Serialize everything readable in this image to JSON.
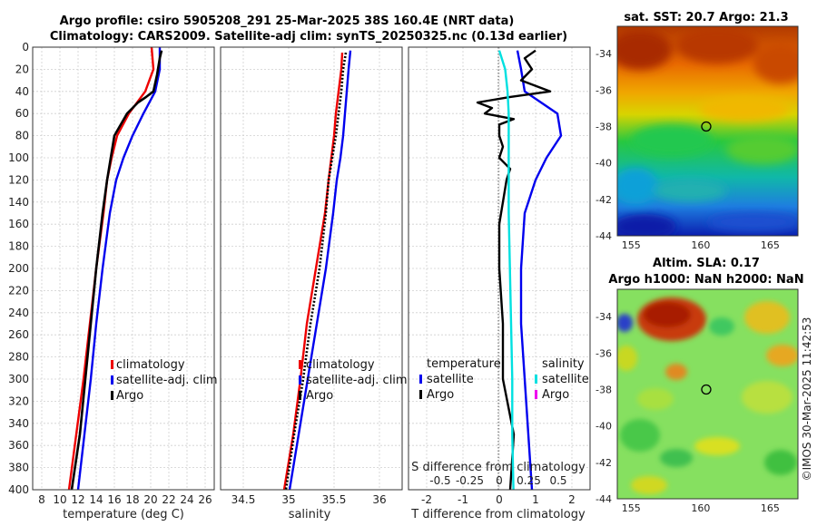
{
  "titles": {
    "line1": "Argo profile: csiro 5905208_291 25-Mar-2025 38S 160.4E (NRT data)",
    "line2": "Climatology: CARS2009. Satellite-adj clim: synTS_20250325.nc (0.13d earlier)"
  },
  "colors": {
    "climatology": "#ee0000",
    "satellite": "#0000ee",
    "argo": "#000000",
    "sat_salinity": "#00e0e0",
    "argo_salinity_diff": "#ee00ee"
  },
  "chart_data": [
    {
      "type": "line",
      "name": "temperature-panel",
      "xlabel": "temperature (deg C)",
      "ylabel": "",
      "xlim": [
        7,
        27
      ],
      "ylim": [
        400,
        0
      ],
      "xticks": [
        8,
        10,
        12,
        14,
        16,
        18,
        20,
        22,
        24,
        26
      ],
      "yticks": [
        0,
        20,
        40,
        60,
        80,
        100,
        120,
        140,
        160,
        180,
        200,
        220,
        240,
        260,
        280,
        300,
        320,
        340,
        360,
        380,
        400
      ],
      "grid": true,
      "legend": {
        "placement": "bottom-right",
        "entries": [
          "climatology",
          "satellite-adj. clim",
          "Argo"
        ]
      },
      "series": [
        {
          "name": "climatology",
          "depth": [
            0,
            20,
            40,
            60,
            80,
            100,
            120,
            150,
            200,
            250,
            300,
            350,
            400
          ],
          "values": [
            20.1,
            20.3,
            19.4,
            17.6,
            16.3,
            15.7,
            15.2,
            14.8,
            14.0,
            13.3,
            12.6,
            11.8,
            11.0
          ]
        },
        {
          "name": "satellite-adj. clim",
          "depth": [
            0,
            20,
            40,
            60,
            80,
            100,
            120,
            150,
            200,
            250,
            300,
            350,
            400
          ],
          "values": [
            21.0,
            21.0,
            20.5,
            19.2,
            18.0,
            17.0,
            16.2,
            15.5,
            14.7,
            14.0,
            13.4,
            12.7,
            12.0
          ]
        },
        {
          "name": "Argo",
          "depth": [
            3,
            10,
            25,
            40,
            45,
            50,
            55,
            60,
            70,
            80,
            100,
            120,
            150,
            200,
            250,
            300,
            350,
            400
          ],
          "values": [
            21.2,
            21.0,
            20.7,
            20.3,
            19.5,
            18.6,
            18.0,
            17.4,
            16.7,
            16.0,
            15.6,
            15.2,
            14.7,
            14.0,
            13.4,
            12.8,
            12.2,
            11.3
          ]
        }
      ]
    },
    {
      "type": "line",
      "name": "salinity-panel",
      "xlabel": "salinity",
      "xlim": [
        34.25,
        36.25
      ],
      "ylim": [
        400,
        0
      ],
      "xticks": [
        34.5,
        35,
        35.5,
        36
      ],
      "xtick_labels": [
        "34.5",
        "35",
        "35.5",
        "36"
      ],
      "grid": true,
      "legend": {
        "placement": "bottom-right",
        "entries": [
          "climatology",
          "satellite-adj. clim",
          "Argo"
        ]
      },
      "series": [
        {
          "name": "climatology",
          "depth": [
            5,
            20,
            40,
            60,
            80,
            100,
            120,
            150,
            200,
            250,
            300,
            350,
            400
          ],
          "values": [
            35.59,
            35.58,
            35.55,
            35.52,
            35.5,
            35.47,
            35.44,
            35.4,
            35.3,
            35.2,
            35.13,
            35.05,
            34.95
          ]
        },
        {
          "name": "satellite-adj. clim",
          "depth": [
            3,
            20,
            40,
            60,
            80,
            100,
            120,
            150,
            200,
            250,
            300,
            350,
            400
          ],
          "values": [
            35.68,
            35.66,
            35.64,
            35.62,
            35.6,
            35.57,
            35.53,
            35.49,
            35.41,
            35.31,
            35.21,
            35.11,
            35.01
          ]
        },
        {
          "name": "Argo",
          "depth": [
            5,
            20,
            40,
            60,
            80,
            100,
            120,
            150,
            200,
            250,
            300,
            350,
            400
          ],
          "values": [
            35.63,
            35.6,
            35.58,
            35.55,
            35.52,
            35.48,
            35.44,
            35.41,
            35.34,
            35.24,
            35.16,
            35.06,
            34.97
          ]
        }
      ]
    },
    {
      "type": "line",
      "name": "difference-panel",
      "xlabel": "T difference from climatology",
      "top_xlabel": "S difference from climatology",
      "xlim": [
        -2.5,
        2.5
      ],
      "ylim": [
        400,
        0
      ],
      "xticks": [
        -2,
        -1,
        0,
        1,
        2
      ],
      "xtick_labels": [
        "-2",
        "-1",
        "0",
        "1",
        "2"
      ],
      "s_ticks": [
        -0.5,
        -0.25,
        0,
        0.25,
        0.5
      ],
      "s_tick_labels": [
        "-0.5",
        "-0.25",
        "0",
        "0.25",
        "0.5"
      ],
      "grid": true,
      "legend": {
        "placement": "bottom",
        "temperature_heading": "temperature",
        "salinity_heading": "salinity",
        "temperature_entries": [
          "satellite",
          "Argo"
        ],
        "salinity_entries": [
          "satellite",
          "Argo"
        ]
      },
      "series": [
        {
          "name": "temperature satellite",
          "depth": [
            3,
            20,
            40,
            60,
            80,
            100,
            120,
            150,
            200,
            250,
            300,
            350,
            400
          ],
          "values": [
            0.5,
            0.6,
            0.7,
            1.6,
            1.7,
            1.3,
            1.0,
            0.7,
            0.6,
            0.6,
            0.7,
            0.8,
            0.9
          ]
        },
        {
          "name": "temperature Argo",
          "depth": [
            3,
            10,
            20,
            30,
            40,
            45,
            50,
            55,
            60,
            65,
            70,
            80,
            90,
            100,
            110,
            120,
            140,
            160,
            200,
            250,
            300,
            350,
            400
          ],
          "values": [
            1.0,
            0.7,
            0.9,
            0.6,
            1.4,
            0.3,
            -0.6,
            -0.2,
            -0.4,
            0.4,
            0.0,
            0.0,
            0.1,
            0.0,
            0.3,
            0.2,
            0.1,
            0.0,
            0.0,
            0.1,
            0.1,
            0.4,
            0.3
          ]
        },
        {
          "name": "salinity satellite",
          "depth": [
            3,
            20,
            40,
            60,
            80,
            100,
            150,
            200,
            250,
            300,
            350,
            400
          ],
          "values": [
            0.0,
            0.05,
            0.07,
            0.08,
            0.08,
            0.08,
            0.08,
            0.09,
            0.1,
            0.11,
            0.11,
            0.12
          ]
        }
      ]
    }
  ],
  "maps": {
    "sst": {
      "title": "sat. SST: 20.7 Argo: 21.3",
      "lat_ticks": [
        "-34",
        "-36",
        "-38",
        "-40",
        "-42",
        "-44"
      ],
      "lon_ticks": [
        "155",
        "160",
        "165"
      ],
      "lon_range": [
        154,
        167
      ],
      "lat_range": [
        -44,
        -32.5
      ],
      "argo_lon": 160.4,
      "argo_lat": -38.0
    },
    "sla": {
      "title1": "Altim. SLA: 0.17",
      "title2": "Argo h1000: NaN h2000: NaN",
      "lat_ticks": [
        "-34",
        "-36",
        "-38",
        "-40",
        "-42",
        "-44"
      ],
      "lon_ticks": [
        "155",
        "160",
        "165"
      ],
      "lon_range": [
        154,
        167
      ],
      "lat_range": [
        -44,
        -32.5
      ],
      "argo_lon": 160.4,
      "argo_lat": -38.0
    }
  },
  "watermark": "©IMOS 30-Mar-2025 11:42:53"
}
